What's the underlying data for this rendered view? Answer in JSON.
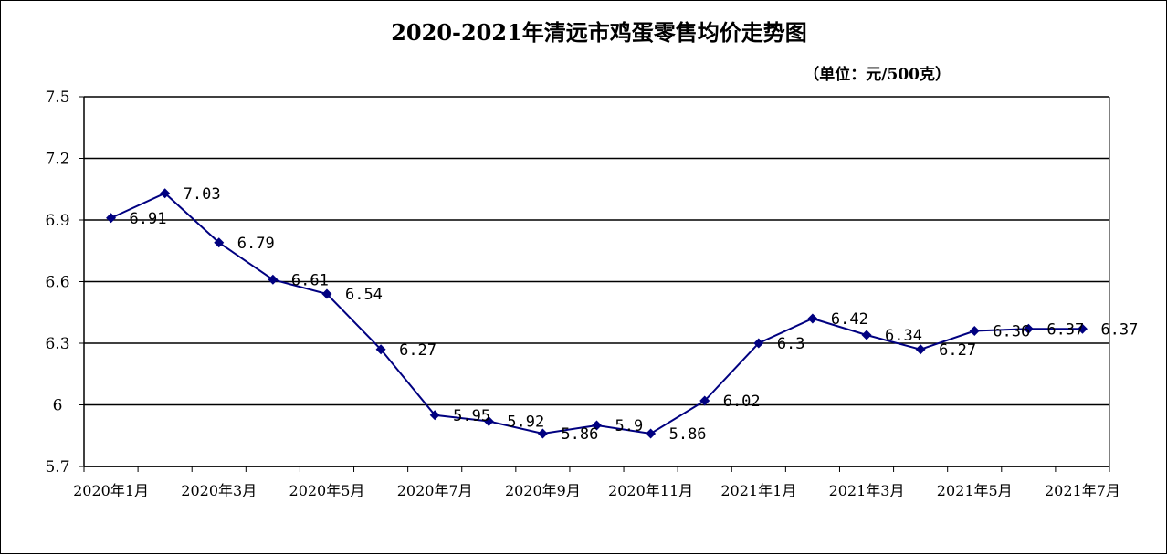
{
  "chart_data": {
    "type": "line",
    "title": "2020-2021年清远市鸡蛋零售均价走势图",
    "unit_label": "（单位：元/500克）",
    "ylim": [
      5.7,
      7.5
    ],
    "y_ticks": [
      "7.5",
      "7.2",
      "6.9",
      "6.6",
      "6.3",
      "6",
      "5.7"
    ],
    "y_tick_values": [
      7.5,
      7.2,
      6.9,
      6.6,
      6.3,
      6.0,
      5.7
    ],
    "x_tick_labels": [
      "2020年1月",
      "2020年3月",
      "2020年5月",
      "2020年7月",
      "2020年9月",
      "2020年11月",
      "2021年1月",
      "2021年3月",
      "2021年5月",
      "2021年7月"
    ],
    "categories": [
      "2020年1月",
      "2020年2月",
      "2020年3月",
      "2020年4月",
      "2020年5月",
      "2020年6月",
      "2020年7月",
      "2020年8月",
      "2020年9月",
      "2020年10月",
      "2020年11月",
      "2020年12月",
      "2021年1月",
      "2021年2月",
      "2021年3月",
      "2021年4月",
      "2021年5月",
      "2021年6月",
      "2021年7月"
    ],
    "values": [
      6.91,
      7.03,
      6.79,
      6.61,
      6.54,
      6.27,
      5.95,
      5.92,
      5.86,
      5.9,
      5.86,
      6.02,
      6.3,
      6.42,
      6.34,
      6.27,
      6.36,
      6.37,
      6.37
    ],
    "data_labels": [
      "6.91",
      "7.03",
      "6.79",
      "6.61",
      "6.54",
      "6.27",
      "5.95",
      "5.92",
      "5.86",
      "5.9",
      "5.86",
      "6.02",
      "6.3",
      "6.42",
      "6.34",
      "6.27",
      "6.36",
      "6.37",
      "6.37"
    ],
    "series_color": "#000080",
    "grid": true,
    "legend": "none"
  }
}
